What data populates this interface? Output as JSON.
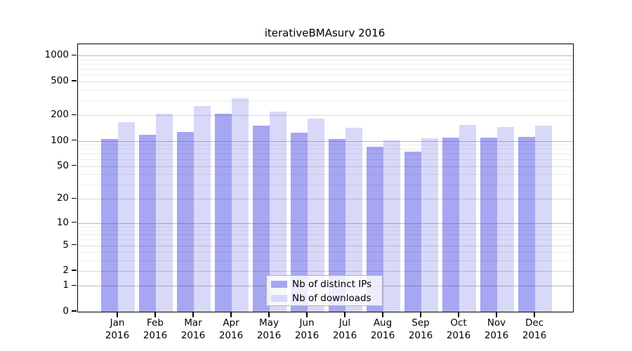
{
  "figure": {
    "title": "iterativeBMAsurv 2016",
    "background": "#ffffff"
  },
  "chart_data": {
    "type": "bar",
    "title": "iterativeBMAsurv 2016",
    "categories": [
      "Jan 2016",
      "Feb 2016",
      "Mar 2016",
      "Apr 2016",
      "May 2016",
      "Jun 2016",
      "Jul 2016",
      "Aug 2016",
      "Sep 2016",
      "Oct 2016",
      "Nov 2016",
      "Dec 2016"
    ],
    "series": [
      {
        "name": "Nb of distinct IPs",
        "color": "#a6a6f2",
        "values": [
          105,
          117,
          128,
          209,
          150,
          124,
          105,
          85,
          75,
          110,
          110,
          112
        ]
      },
      {
        "name": "Nb of downloads",
        "color": "#d8d8f9",
        "values": [
          166,
          209,
          258,
          317,
          219,
          184,
          142,
          101,
          106,
          155,
          145,
          151
        ]
      }
    ],
    "xlabel": "",
    "ylabel": "",
    "y_axis": {
      "ticks": [
        0,
        1,
        2,
        5,
        10,
        20,
        50,
        100,
        200,
        500,
        1000
      ],
      "scale": "log10(value+1)",
      "ylim": [
        0,
        1350
      ]
    },
    "legend": {
      "position": "bottom-center-inside",
      "items": [
        "Nb of distinct IPs",
        "Nb of downloads"
      ]
    },
    "grid": "horizontal log gridlines (minor + major) drawn over bars"
  },
  "colors": {
    "ips_bar": "#a6a6f2",
    "downloads_bar": "#d8d8f9",
    "axis": "#000000",
    "grid_decade": "rgba(90,90,90,0.42)",
    "grid_major": "rgba(0,0,0,0.15)",
    "grid_minor": "rgba(0,0,0,0.07)",
    "legend_border": "#b5b5b5",
    "legend_bg": "rgba(255,255,255,0.8)"
  }
}
